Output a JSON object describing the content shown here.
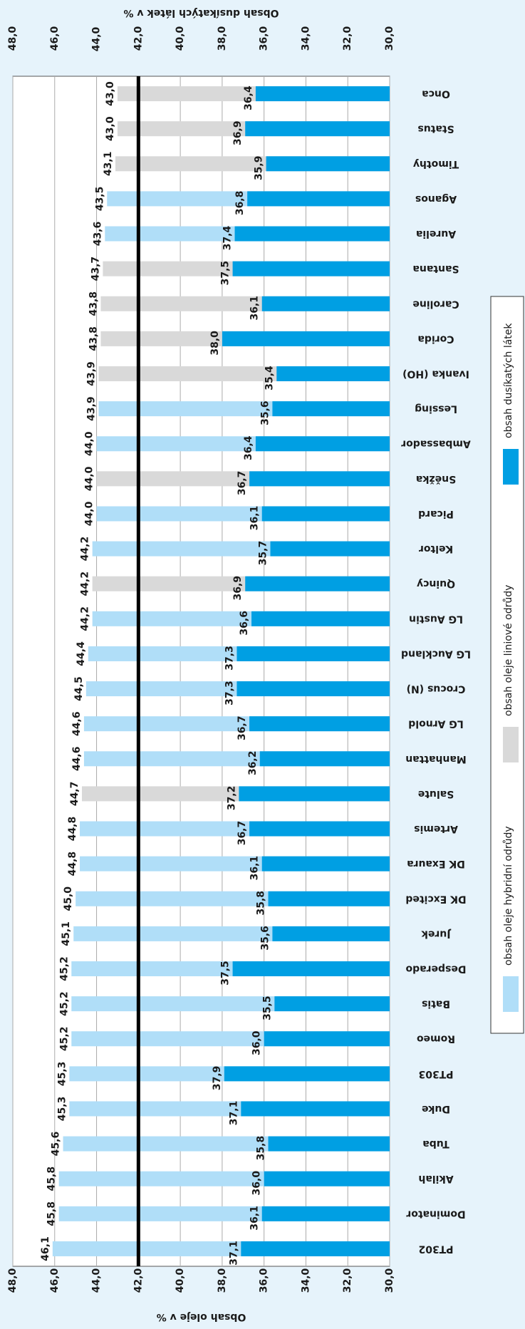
{
  "chart_data": {
    "type": "bar",
    "xlabel": "Obsah oleje  v %",
    "x2label": "Obsah dusíkatých látek v %",
    "categories": [
      "PT302",
      "Dominator",
      "Akilah",
      "Tuba",
      "Duke",
      "PT303",
      "Romeo",
      "Batis",
      "Desperado",
      "Jurek",
      "DK Excited",
      "DK Exaura",
      "Artemis",
      "Salute",
      "Manhattan",
      "LG Arnold",
      "Crocus (N)",
      "LG Auckland",
      "LG Austin",
      "Quincy",
      "Keltor",
      "Picard",
      "Sněžka",
      "Ambassador",
      "Lessing",
      "Ivanka (HO)",
      "Corida",
      "Caroline",
      "Santana",
      "Aurelia",
      "Aganos",
      "Timothy",
      "Status",
      "Onca"
    ],
    "series": [
      {
        "name": "obsah oleje hybridní odrůdy",
        "color": "#b0def8",
        "values": [
          46.1,
          45.8,
          45.8,
          45.6,
          45.3,
          45.3,
          45.2,
          45.2,
          45.2,
          45.1,
          45.0,
          44.8,
          44.8,
          null,
          44.6,
          44.6,
          44.5,
          44.4,
          44.2,
          null,
          44.2,
          44.0,
          null,
          44.0,
          43.9,
          null,
          null,
          null,
          null,
          43.6,
          43.5,
          null,
          null,
          null
        ],
        "value_labels": [
          "46,1",
          "45,8",
          "45,8",
          "45,6",
          "45,3",
          "45,3",
          "45,2",
          "45,2",
          "45,2",
          "45,1",
          "45,0",
          "44,8",
          "44,8",
          null,
          "44,6",
          "44,6",
          "44,5",
          "44,4",
          "44,2",
          null,
          "44,2",
          "44,0",
          null,
          "44,0",
          "43,9",
          null,
          null,
          null,
          null,
          "43,6",
          "43,5",
          null,
          null,
          null
        ]
      },
      {
        "name": "obsah oleje liniové odrůdy",
        "color": "#d9d9d9",
        "values": [
          null,
          null,
          null,
          null,
          null,
          null,
          null,
          null,
          null,
          null,
          null,
          null,
          null,
          44.7,
          null,
          null,
          null,
          null,
          null,
          44.2,
          null,
          null,
          44.0,
          null,
          null,
          43.9,
          43.8,
          43.8,
          43.7,
          null,
          null,
          43.1,
          43.0,
          43.0
        ],
        "value_labels": [
          null,
          null,
          null,
          null,
          null,
          null,
          null,
          null,
          null,
          null,
          null,
          null,
          null,
          "44,7",
          null,
          null,
          null,
          null,
          null,
          "44,2",
          null,
          null,
          "44,0",
          null,
          null,
          "43,9",
          "43,8",
          "43,8",
          "43,7",
          null,
          null,
          "43,1",
          "43,0",
          "43,0"
        ]
      },
      {
        "name": "obsah dusíkatých látek",
        "color": "#009fe3",
        "values": [
          37.1,
          36.1,
          36.0,
          35.8,
          37.1,
          37.9,
          36.0,
          35.5,
          37.5,
          35.6,
          35.8,
          36.1,
          36.7,
          37.2,
          36.2,
          36.7,
          37.3,
          37.3,
          36.6,
          36.9,
          35.7,
          36.1,
          36.7,
          36.4,
          35.6,
          35.4,
          38.0,
          36.1,
          37.5,
          37.4,
          36.8,
          35.9,
          36.9,
          36.4
        ],
        "value_labels": [
          "37,1",
          "36,1",
          "36,0",
          "35,8",
          "37,1",
          "37,9",
          "36,0",
          "35,5",
          "37,5",
          "35,6",
          "35,8",
          "36,1",
          "36,7",
          "37,2",
          "36,2",
          "36,7",
          "37,3",
          "37,3",
          "36,6",
          "36,9",
          "35,7",
          "36,1",
          "36,7",
          "36,4",
          "35,6",
          "35,4",
          "38,0",
          "36,1",
          "37,5",
          "37,4",
          "36,8",
          "35,9",
          "36,9",
          "36,4"
        ]
      }
    ],
    "reference_line": 42,
    "xlim": [
      30,
      48
    ],
    "xticks": [
      {
        "value": 30,
        "label": "30,0"
      },
      {
        "value": 32,
        "label": "32,0"
      },
      {
        "value": 34,
        "label": "34,0"
      },
      {
        "value": 36,
        "label": "36,0"
      },
      {
        "value": 38,
        "label": "38,0"
      },
      {
        "value": 40,
        "label": "40,0"
      },
      {
        "value": 42,
        "label": "42,0"
      },
      {
        "value": 44,
        "label": "44,0"
      },
      {
        "value": 46,
        "label": "46,0"
      },
      {
        "value": 48,
        "label": "48,0"
      }
    ],
    "grid": true
  }
}
